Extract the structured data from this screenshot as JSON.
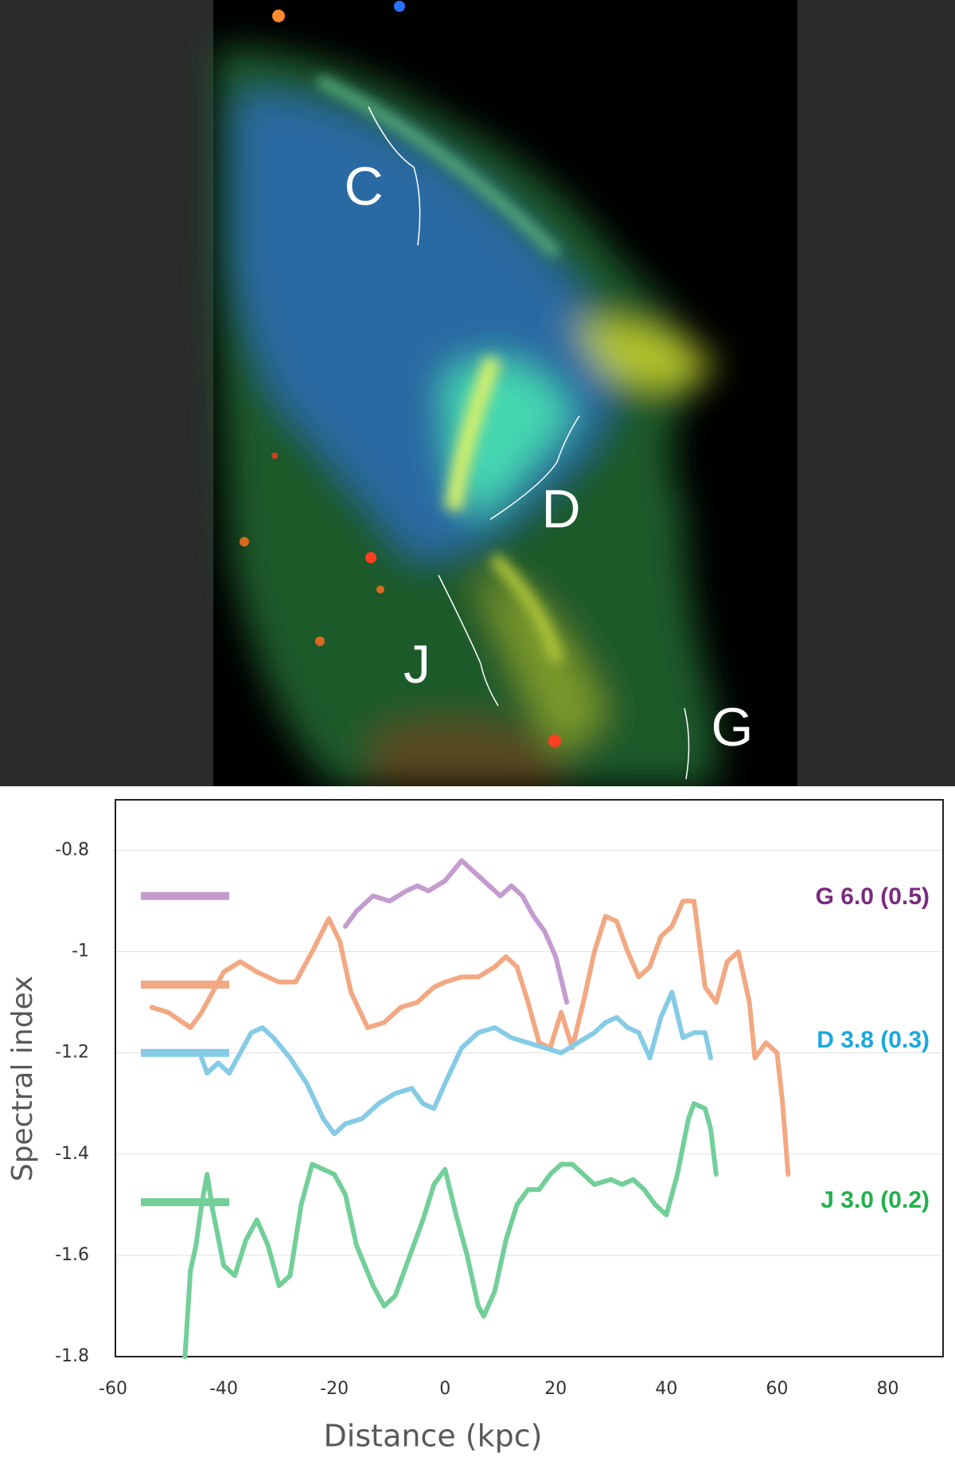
{
  "image": {
    "labels": [
      "C",
      "D",
      "J",
      "G"
    ]
  },
  "chart_data": {
    "type": "line",
    "x_label": "Distance (kpc)",
    "y_label": "Spectral index",
    "xlim": [
      -60,
      90
    ],
    "xticks": [
      -60,
      -40,
      -20,
      0,
      20,
      40,
      60,
      80
    ],
    "ylim": [
      -1.8,
      -0.7
    ],
    "yticks": [
      -1.8,
      -1.6,
      -1.4,
      -1.2,
      -1,
      -0.8
    ],
    "grid": true,
    "series": [
      {
        "name": "G 6.0 (0.5)",
        "color": "#c49bcf",
        "label_color": "#7a2a80",
        "level": -0.89,
        "x": [
          -18,
          -16,
          -13,
          -10,
          -7,
          -5,
          -3,
          0,
          3,
          5,
          8,
          10,
          12,
          14,
          16,
          18,
          20,
          22
        ],
        "values": [
          -0.95,
          -0.92,
          -0.89,
          -0.9,
          -0.88,
          -0.87,
          -0.88,
          -0.86,
          -0.82,
          -0.84,
          -0.87,
          -0.89,
          -0.87,
          -0.89,
          -0.93,
          -0.96,
          -1.01,
          -1.1
        ]
      },
      {
        "color": "#f2a882",
        "level": -1.065,
        "x": [
          -53,
          -50,
          -46,
          -44,
          -40,
          -37,
          -34,
          -30,
          -27,
          -24,
          -21,
          -19,
          -17,
          -14,
          -11,
          -8,
          -5,
          -2,
          0,
          3,
          6,
          9,
          11,
          13,
          15,
          17,
          19,
          21,
          23,
          25,
          27,
          29,
          31,
          33,
          35,
          37,
          39,
          41,
          43,
          45,
          47,
          49,
          51,
          53,
          55,
          56,
          58,
          60,
          61,
          62
        ],
        "values": [
          -1.11,
          -1.12,
          -1.15,
          -1.12,
          -1.04,
          -1.02,
          -1.04,
          -1.06,
          -1.06,
          -1,
          -0.935,
          -0.98,
          -1.08,
          -1.15,
          -1.14,
          -1.11,
          -1.1,
          -1.07,
          -1.06,
          -1.05,
          -1.05,
          -1.03,
          -1.01,
          -1.03,
          -1.1,
          -1.18,
          -1.19,
          -1.12,
          -1.19,
          -1.1,
          -1,
          -0.93,
          -0.94,
          -1,
          -1.05,
          -1.03,
          -0.97,
          -0.95,
          -0.9,
          -0.9,
          -1.07,
          -1.1,
          -1.02,
          -1,
          -1.1,
          -1.21,
          -1.18,
          -1.2,
          -1.3,
          -1.44
        ]
      },
      {
        "name": "D 3.8 (0.3)",
        "color": "#85cbe6",
        "label_color": "#1aa7e0",
        "level": -1.2,
        "x": [
          -44,
          -43,
          -41,
          -39,
          -37,
          -35,
          -33,
          -31,
          -28,
          -25,
          -22,
          -20,
          -18,
          -15,
          -12,
          -9,
          -6,
          -4,
          -2,
          0,
          3,
          6,
          9,
          12,
          15,
          18,
          21,
          24,
          27,
          29,
          31,
          33,
          35,
          37,
          39,
          41,
          43,
          45,
          47,
          48
        ],
        "values": [
          -1.21,
          -1.24,
          -1.22,
          -1.24,
          -1.2,
          -1.16,
          -1.15,
          -1.17,
          -1.21,
          -1.26,
          -1.33,
          -1.36,
          -1.34,
          -1.33,
          -1.3,
          -1.28,
          -1.27,
          -1.3,
          -1.31,
          -1.26,
          -1.19,
          -1.16,
          -1.15,
          -1.17,
          -1.18,
          -1.19,
          -1.2,
          -1.18,
          -1.16,
          -1.14,
          -1.13,
          -1.15,
          -1.16,
          -1.21,
          -1.13,
          -1.08,
          -1.17,
          -1.16,
          -1.16,
          -1.21
        ]
      },
      {
        "name": "J  3.0 (0.2)",
        "color": "#72cf98",
        "label_color": "#22b04c",
        "level": -1.495,
        "x": [
          -47,
          -46,
          -45,
          -44,
          -43,
          -42,
          -40,
          -38,
          -36,
          -34,
          -32,
          -30,
          -28,
          -26,
          -24,
          -22,
          -20,
          -18,
          -16,
          -13,
          -11,
          -9,
          -7,
          -4,
          -2,
          0,
          2,
          4,
          6,
          7,
          9,
          11,
          13,
          15,
          17,
          19,
          21,
          23,
          25,
          27,
          30,
          32,
          34,
          36,
          38,
          40,
          42,
          44,
          45,
          47,
          48,
          49
        ],
        "values": [
          -1.8,
          -1.63,
          -1.58,
          -1.5,
          -1.44,
          -1.51,
          -1.62,
          -1.64,
          -1.57,
          -1.53,
          -1.58,
          -1.66,
          -1.64,
          -1.5,
          -1.42,
          -1.43,
          -1.44,
          -1.48,
          -1.58,
          -1.66,
          -1.7,
          -1.68,
          -1.62,
          -1.53,
          -1.46,
          -1.43,
          -1.52,
          -1.6,
          -1.7,
          -1.72,
          -1.67,
          -1.57,
          -1.5,
          -1.47,
          -1.47,
          -1.44,
          -1.42,
          -1.42,
          -1.44,
          -1.46,
          -1.45,
          -1.46,
          -1.45,
          -1.47,
          -1.5,
          -1.52,
          -1.44,
          -1.33,
          -1.3,
          -1.31,
          -1.35,
          -1.44
        ]
      }
    ]
  }
}
